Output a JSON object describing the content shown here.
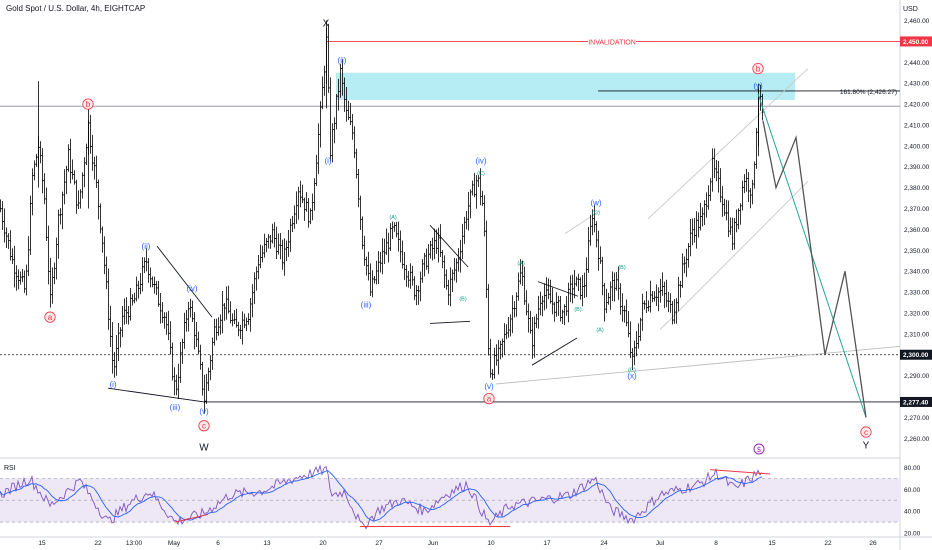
{
  "header": {
    "symbol": "Gold Spot / U.S. Dollar, 4h, EIGHTCAP",
    "currency": "USD"
  },
  "colors": {
    "candle": "#000000",
    "wave_blue": "#2962ff",
    "wave_red": "#f23645",
    "wave_teal": "#089981",
    "invalidation": "#f23645",
    "zone": "#b2ebf2",
    "rsi_line": "#7e57c2",
    "rsi_ma": "#2962ff",
    "rsi_band": "#ede7f6",
    "channel": "#b0b0b0",
    "projection": "#555555",
    "projection_green": "#26a69a"
  },
  "chart_data": {
    "type": "candlestick",
    "title": "Gold Spot / U.S. Dollar, 4h, EIGHTCAP",
    "ylabel": "USD",
    "ylim": [
      2252,
      2466
    ],
    "x_ticks": [
      {
        "i": 42,
        "label": "15"
      },
      {
        "i": 98,
        "label": "22"
      },
      {
        "i": 134,
        "label": "13:00"
      },
      {
        "i": 174,
        "label": "May"
      },
      {
        "i": 218,
        "label": "6"
      },
      {
        "i": 267,
        "label": "13"
      },
      {
        "i": 323,
        "label": "20"
      },
      {
        "i": 379,
        "label": "27"
      },
      {
        "i": 433,
        "label": "Jun"
      },
      {
        "i": 491,
        "label": "10"
      },
      {
        "i": 547,
        "label": "17"
      },
      {
        "i": 604,
        "label": "24"
      },
      {
        "i": 660,
        "label": "Jul"
      },
      {
        "i": 716,
        "label": "8"
      },
      {
        "i": 772,
        "label": "15"
      },
      {
        "i": 828,
        "label": "22"
      },
      {
        "i": 873,
        "label": "26"
      }
    ],
    "y_ticks": [
      2460,
      2440,
      2430,
      2420,
      2410,
      2400,
      2390,
      2380,
      2370,
      2360,
      2350,
      2340,
      2330,
      2320,
      2310,
      2290,
      2270,
      2260
    ],
    "y_tick_labels": [
      "2,460.00",
      "2,440.00",
      "2,430.00",
      "2,420.00",
      "2,410.00",
      "2,400.00",
      "2,390.00",
      "2,380.00",
      "2,370.00",
      "2,360.00",
      "2,350.00",
      "2,340.00",
      "2,330.00",
      "2,320.00",
      "2,310.00",
      "2,290.00",
      "2,270.00",
      "2,260.00"
    ],
    "price_badges": [
      {
        "value": 2450.0,
        "label": "2,450.00",
        "color": "#f23645"
      },
      {
        "value": 2300.0,
        "label": "2,300.00",
        "color": "#131722"
      },
      {
        "value": 2277.4,
        "label": "2,277.40",
        "color": "#131722"
      }
    ],
    "gray_line_value": 2419,
    "fib": {
      "value": 2426.27,
      "label": "161.80% (2,426.27)"
    },
    "invalidation": {
      "value": 2450,
      "label": "INVALIDATION"
    },
    "zone": {
      "from": 2422,
      "to": 2435,
      "start": 336,
      "end": 795
    },
    "price_path": [
      [
        0,
        2370
      ],
      [
        12,
        2345
      ],
      [
        25,
        2330
      ],
      [
        32,
        2385
      ],
      [
        38,
        2400
      ],
      [
        44,
        2375
      ],
      [
        50,
        2325
      ],
      [
        58,
        2365
      ],
      [
        68,
        2395
      ],
      [
        78,
        2370
      ],
      [
        88,
        2410
      ],
      [
        95,
        2385
      ],
      [
        102,
        2355
      ],
      [
        108,
        2320
      ],
      [
        113,
        2292
      ],
      [
        122,
        2318
      ],
      [
        133,
        2325
      ],
      [
        146,
        2345
      ],
      [
        155,
        2330
      ],
      [
        165,
        2318
      ],
      [
        175,
        2282
      ],
      [
        188,
        2325
      ],
      [
        194,
        2312
      ],
      [
        204,
        2279
      ],
      [
        214,
        2312
      ],
      [
        224,
        2325
      ],
      [
        235,
        2312
      ],
      [
        248,
        2320
      ],
      [
        258,
        2345
      ],
      [
        272,
        2358
      ],
      [
        283,
        2345
      ],
      [
        298,
        2380
      ],
      [
        310,
        2365
      ],
      [
        320,
        2415
      ],
      [
        326,
        2450
      ],
      [
        330,
        2398
      ],
      [
        340,
        2435
      ],
      [
        346,
        2415
      ],
      [
        353,
        2405
      ],
      [
        362,
        2355
      ],
      [
        370,
        2330
      ],
      [
        380,
        2345
      ],
      [
        393,
        2360
      ],
      [
        403,
        2345
      ],
      [
        415,
        2330
      ],
      [
        425,
        2345
      ],
      [
        437,
        2355
      ],
      [
        447,
        2330
      ],
      [
        457,
        2345
      ],
      [
        467,
        2370
      ],
      [
        477,
        2385
      ],
      [
        483,
        2370
      ],
      [
        489,
        2292
      ],
      [
        499,
        2300
      ],
      [
        511,
        2320
      ],
      [
        521,
        2340
      ],
      [
        531,
        2305
      ],
      [
        541,
        2330
      ],
      [
        551,
        2325
      ],
      [
        563,
        2320
      ],
      [
        573,
        2335
      ],
      [
        583,
        2330
      ],
      [
        592,
        2368
      ],
      [
        598,
        2350
      ],
      [
        604,
        2325
      ],
      [
        614,
        2335
      ],
      [
        624,
        2320
      ],
      [
        632,
        2296
      ],
      [
        642,
        2322
      ],
      [
        652,
        2330
      ],
      [
        662,
        2330
      ],
      [
        672,
        2320
      ],
      [
        682,
        2340
      ],
      [
        692,
        2360
      ],
      [
        702,
        2365
      ],
      [
        712,
        2390
      ],
      [
        722,
        2375
      ],
      [
        732,
        2355
      ],
      [
        744,
        2385
      ],
      [
        752,
        2378
      ],
      [
        758,
        2425
      ],
      [
        763,
        2412
      ]
    ],
    "rsi": {
      "label": "RSI",
      "ylim": [
        20,
        85
      ],
      "ticks": [
        80,
        60,
        40,
        20
      ],
      "tick_labels": [
        "80.00",
        "60.00",
        "40.00",
        "20.00"
      ],
      "band": [
        30,
        70
      ],
      "path": [
        [
          0,
          55
        ],
        [
          30,
          70
        ],
        [
          50,
          45
        ],
        [
          80,
          68
        ],
        [
          108,
          30
        ],
        [
          130,
          48
        ],
        [
          150,
          58
        ],
        [
          175,
          30
        ],
        [
          204,
          38
        ],
        [
          230,
          55
        ],
        [
          260,
          58
        ],
        [
          300,
          72
        ],
        [
          326,
          78
        ],
        [
          332,
          55
        ],
        [
          345,
          58
        ],
        [
          362,
          25
        ],
        [
          380,
          42
        ],
        [
          400,
          50
        ],
        [
          425,
          40
        ],
        [
          445,
          55
        ],
        [
          467,
          65
        ],
        [
          489,
          28
        ],
        [
          510,
          45
        ],
        [
          540,
          50
        ],
        [
          570,
          55
        ],
        [
          595,
          70
        ],
        [
          610,
          42
        ],
        [
          632,
          32
        ],
        [
          660,
          55
        ],
        [
          700,
          65
        ],
        [
          716,
          75
        ],
        [
          735,
          60
        ],
        [
          758,
          75
        ],
        [
          763,
          72
        ]
      ]
    },
    "projection": [
      [
        763,
        2412
      ],
      [
        776,
        2380
      ],
      [
        796,
        2404
      ],
      [
        825,
        2300
      ],
      [
        845,
        2340
      ],
      [
        866,
        2270
      ]
    ],
    "projection_green": [
      [
        758,
        2425
      ],
      [
        866,
        2270
      ]
    ],
    "annotations": [
      {
        "text": "X",
        "i": 326,
        "v": 2459,
        "style": "plain"
      },
      {
        "text": "W",
        "i": 204,
        "v": 2256,
        "style": "plain"
      },
      {
        "text": "Y",
        "i": 866,
        "v": 2257,
        "style": "plain"
      },
      {
        "text": "b",
        "i": 88,
        "v": 2420,
        "style": "circle-red"
      },
      {
        "text": "a",
        "i": 50,
        "v": 2318,
        "style": "circle-red"
      },
      {
        "text": "c",
        "i": 204,
        "v": 2266,
        "style": "circle-red"
      },
      {
        "text": "a",
        "i": 489,
        "v": 2279,
        "style": "circle-red"
      },
      {
        "text": "b",
        "i": 758,
        "v": 2437,
        "style": "circle-red"
      },
      {
        "text": "c",
        "i": 866,
        "v": 2263,
        "style": "circle-red"
      },
      {
        "text": "(i)",
        "i": 113,
        "v": 2286,
        "style": "blue"
      },
      {
        "text": "(ii)",
        "i": 146,
        "v": 2352,
        "style": "blue"
      },
      {
        "text": "(iii)",
        "i": 175,
        "v": 2275,
        "style": "blue"
      },
      {
        "text": "(iv)",
        "i": 192,
        "v": 2332,
        "style": "blue"
      },
      {
        "text": "(v)",
        "i": 204,
        "v": 2273,
        "style": "blue"
      },
      {
        "text": "(i)",
        "i": 328,
        "v": 2393,
        "style": "blue"
      },
      {
        "text": "(ii)",
        "i": 342,
        "v": 2441,
        "style": "blue"
      },
      {
        "text": "(iii)",
        "i": 366,
        "v": 2324,
        "style": "blue"
      },
      {
        "text": "(iv)",
        "i": 481,
        "v": 2393,
        "style": "blue"
      },
      {
        "text": "(v)",
        "i": 489,
        "v": 2285,
        "style": "blue"
      },
      {
        "text": "(w)",
        "i": 596,
        "v": 2373,
        "style": "blue"
      },
      {
        "text": "(x)",
        "i": 632,
        "v": 2290,
        "style": "blue"
      },
      {
        "text": "(y)",
        "i": 758,
        "v": 2429,
        "style": "blue"
      },
      {
        "text": "(C)",
        "i": 481,
        "v": 2387,
        "style": "teal"
      },
      {
        "text": "(A)",
        "i": 393,
        "v": 2366,
        "style": "teal"
      },
      {
        "text": "(B)",
        "i": 463,
        "v": 2327,
        "style": "teal"
      },
      {
        "text": "(A)",
        "i": 521,
        "v": 2344,
        "style": "teal"
      },
      {
        "text": "(B)",
        "i": 578,
        "v": 2322,
        "style": "teal"
      },
      {
        "text": "(C)",
        "i": 596,
        "v": 2368,
        "style": "teal"
      },
      {
        "text": "(A)",
        "i": 600,
        "v": 2312,
        "style": "teal"
      },
      {
        "text": "(B)",
        "i": 622,
        "v": 2342,
        "style": "teal"
      },
      {
        "text": "(C)",
        "i": 632,
        "v": 2293,
        "style": "teal"
      }
    ]
  }
}
